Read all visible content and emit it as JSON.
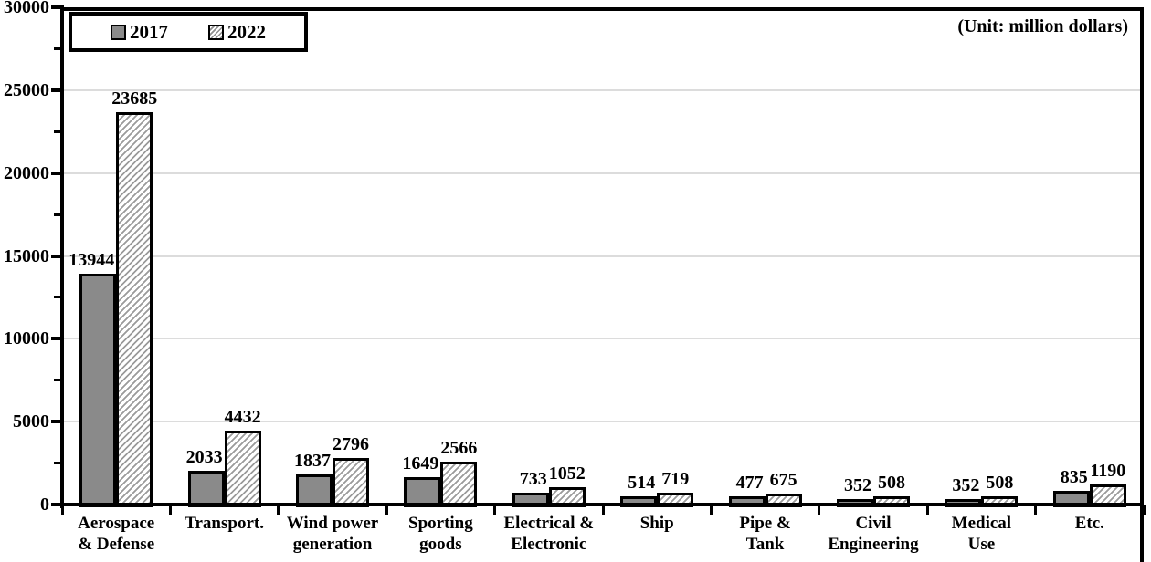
{
  "unit_label": "(Unit: million dollars)",
  "legend": {
    "items": [
      {
        "label": "2017",
        "swatch": "solid-gray-square"
      },
      {
        "label": "2022",
        "swatch": "diagonal-hatched-square"
      }
    ]
  },
  "colors": {
    "bar_2017_fill": "#8a8a8a",
    "bar_2022_hatch_line": "#9b9b9b",
    "bar_border": "#000000",
    "axis": "#000000",
    "gridline": "#dcdcdc",
    "background": "#ffffff",
    "text": "#000000"
  },
  "chart_data": {
    "type": "bar",
    "title": "",
    "unit": "(Unit: million dollars)",
    "categories": [
      "Aerospace\n& Defense",
      "Transport.",
      "Wind power\ngeneration",
      "Sporting\ngoods",
      "Electrical &\nElectronic",
      "Ship",
      "Pipe &\nTank",
      "Civil\nEngineering",
      "Medical\nUse",
      "Etc."
    ],
    "series": [
      {
        "name": "2017",
        "style": "solid",
        "values": [
          13944,
          2033,
          1837,
          1649,
          733,
          514,
          477,
          352,
          352,
          835
        ]
      },
      {
        "name": "2022",
        "style": "hatched",
        "values": [
          23685,
          4432,
          2796,
          2566,
          1052,
          719,
          675,
          508,
          508,
          1190
        ]
      }
    ],
    "xlabel": "",
    "ylabel": "",
    "ylim": [
      0,
      30000
    ],
    "yticks": [
      0,
      5000,
      10000,
      15000,
      20000,
      25000,
      30000
    ],
    "minor_tick_step": 2500,
    "grid": "horizontal-major",
    "data_labels": true,
    "legend_position": "top-left-inside-plot"
  }
}
